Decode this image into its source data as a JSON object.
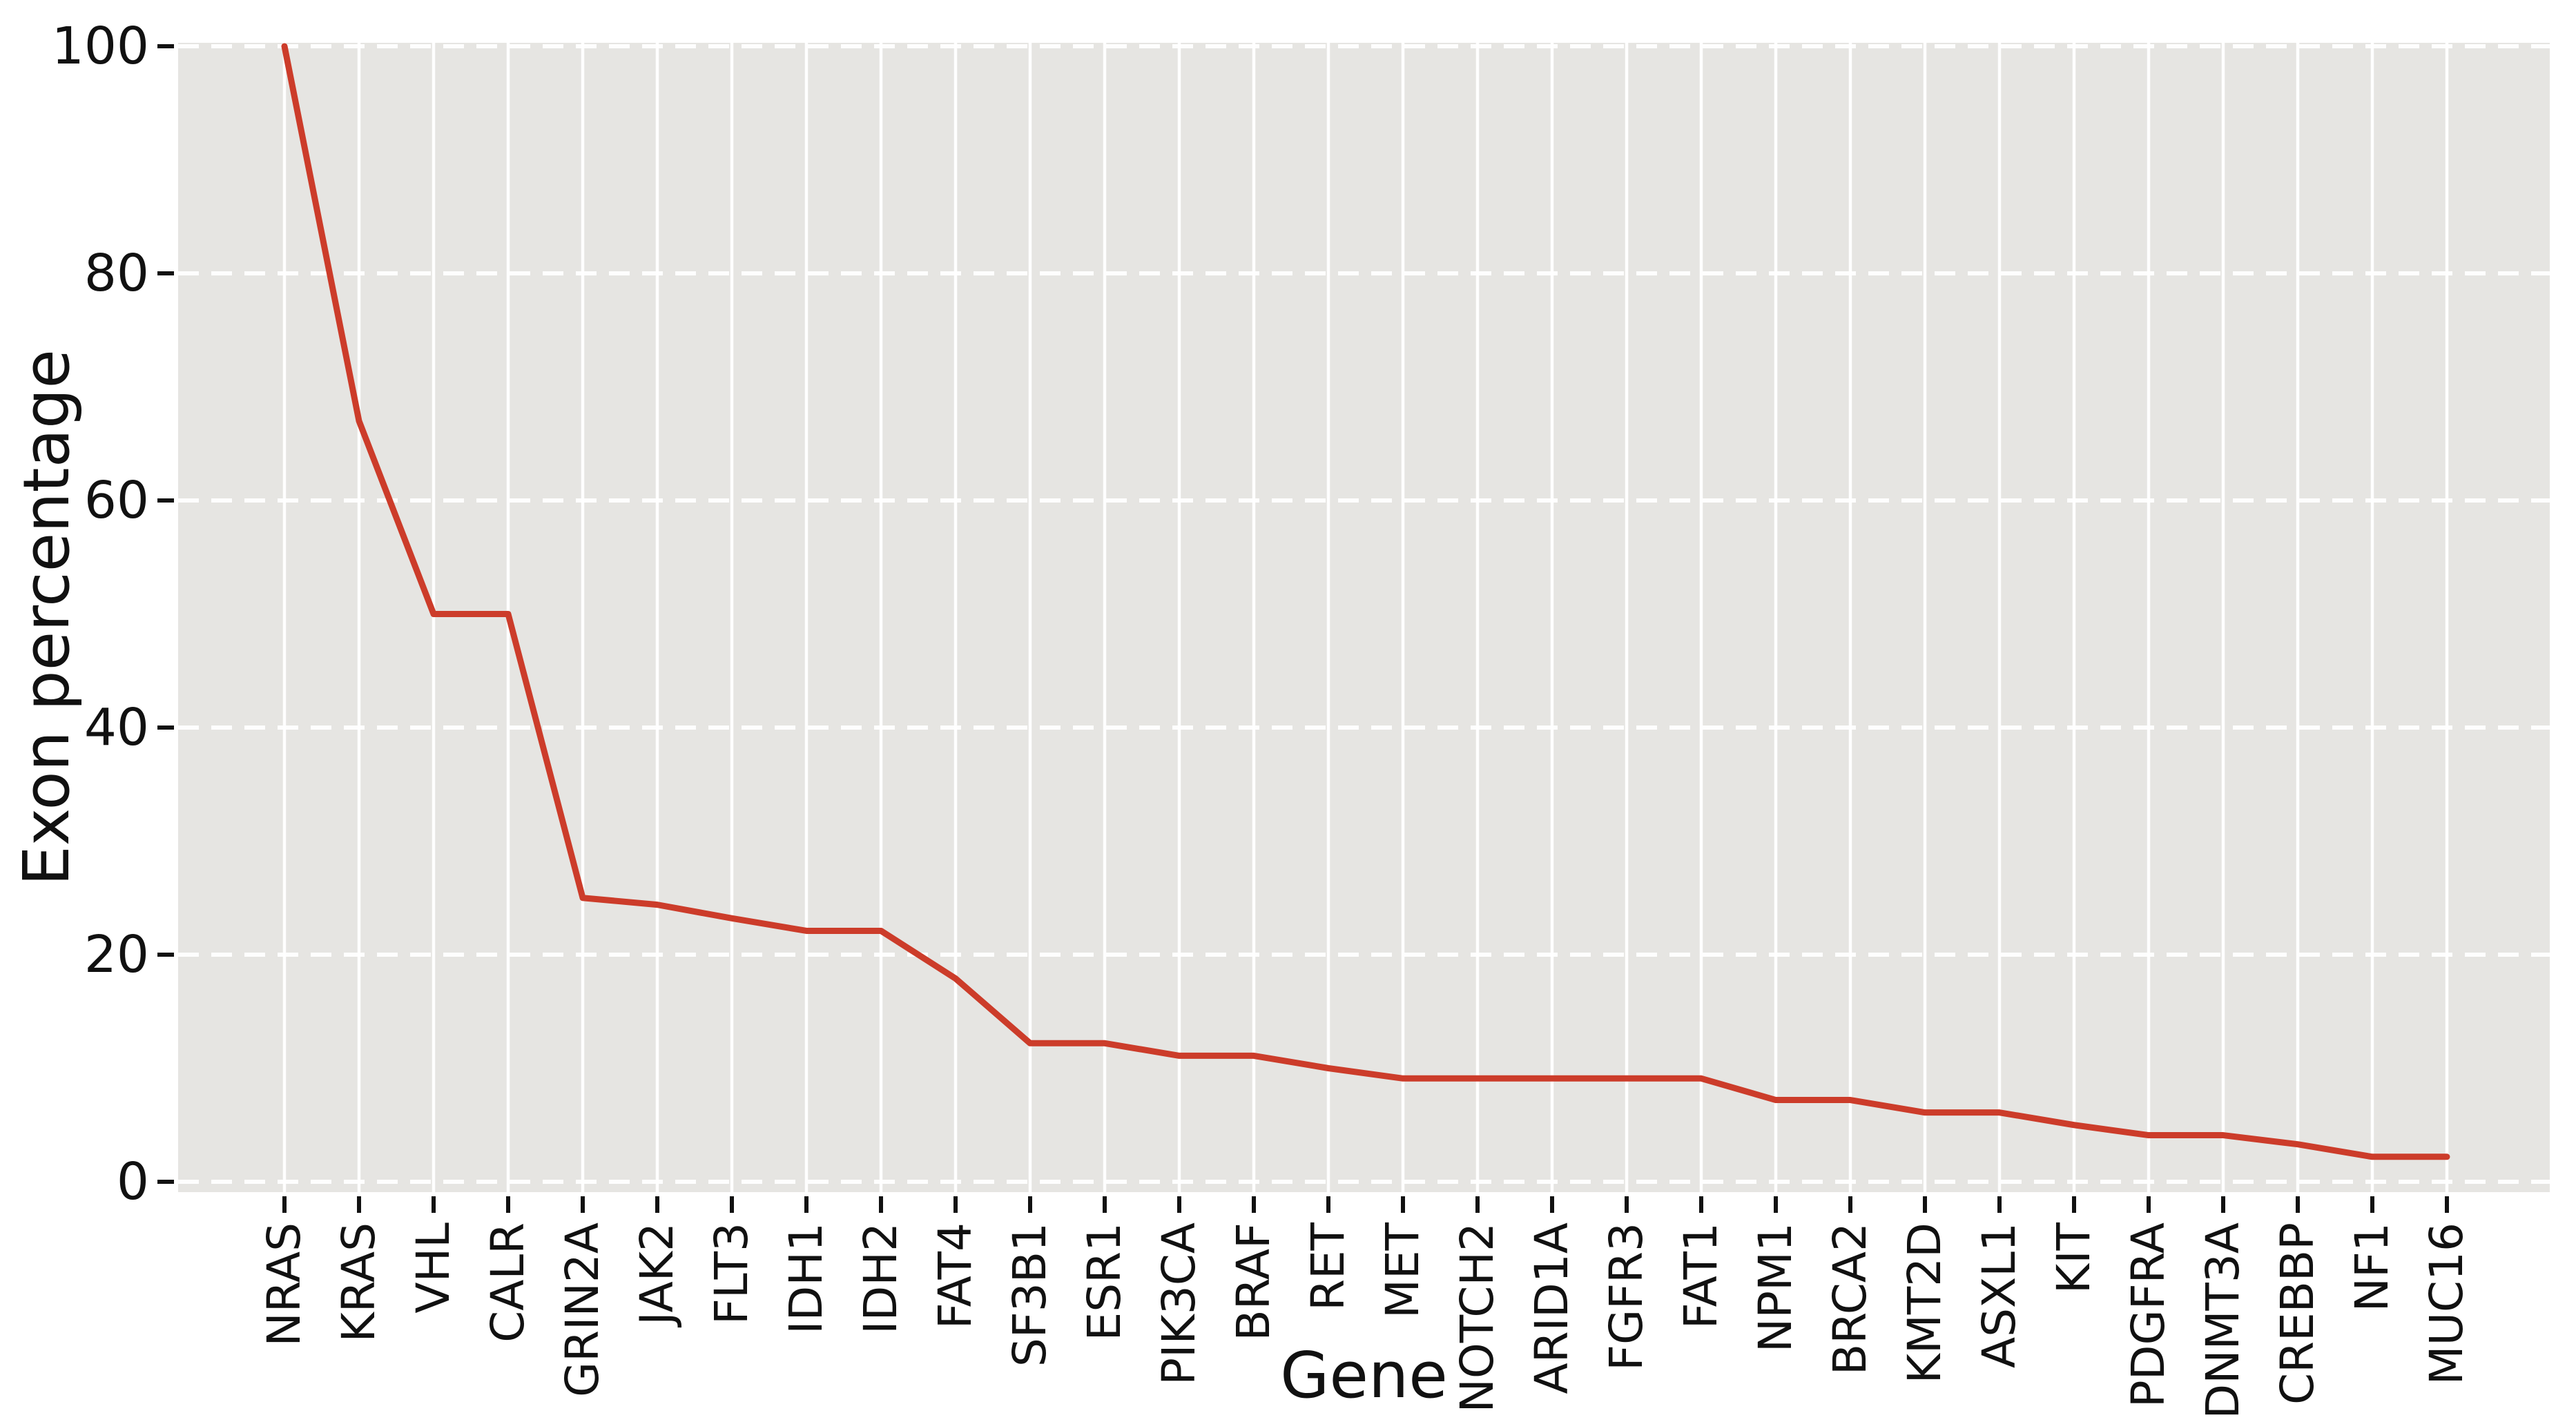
{
  "figure": {
    "background": "#ffffff"
  },
  "chart_data": {
    "type": "line",
    "title": "",
    "xlabel": "Gene",
    "ylabel": "Exon percentage",
    "categories": [
      "NRAS",
      "KRAS",
      "VHL",
      "CALR",
      "GRIN2A",
      "JAK2",
      "FLT3",
      "IDH1",
      "IDH2",
      "FAT4",
      "SF3B1",
      "ESR1",
      "PIK3CA",
      "BRAF",
      "RET",
      "MET",
      "NOTCH2",
      "ARID1A",
      "FGFR3",
      "FAT1",
      "NPM1",
      "BRCA2",
      "KMT2D",
      "ASXL1",
      "KIT",
      "PDGFRA",
      "DNMT3A",
      "CREBBP",
      "NF1",
      "MUC16"
    ],
    "values": [
      100,
      67,
      50,
      50,
      25,
      24.4,
      23.2,
      22.1,
      22.1,
      17.9,
      12.2,
      12.2,
      11.1,
      11.1,
      10,
      9.1,
      9.1,
      9.1,
      9.1,
      9.1,
      7.2,
      7.2,
      6.1,
      6.1,
      5,
      4.1,
      4.1,
      3.3,
      2.2,
      2.2
    ],
    "yticks": [
      0,
      20,
      40,
      60,
      80,
      100
    ],
    "ytick_labels": [
      "0",
      "20",
      "40",
      "60",
      "80",
      "100"
    ],
    "ylim": [
      -1,
      100.5
    ],
    "grid_vertical": "solid-white-per-gene",
    "grid_horizontal": "dashed-white-per-20",
    "legend": "none",
    "colors": {
      "line": "#cc3c2a",
      "plot_background": "#e6e5e2",
      "gridline": "#ffffff",
      "tick_mark": "#111111",
      "text": "#111111"
    }
  }
}
